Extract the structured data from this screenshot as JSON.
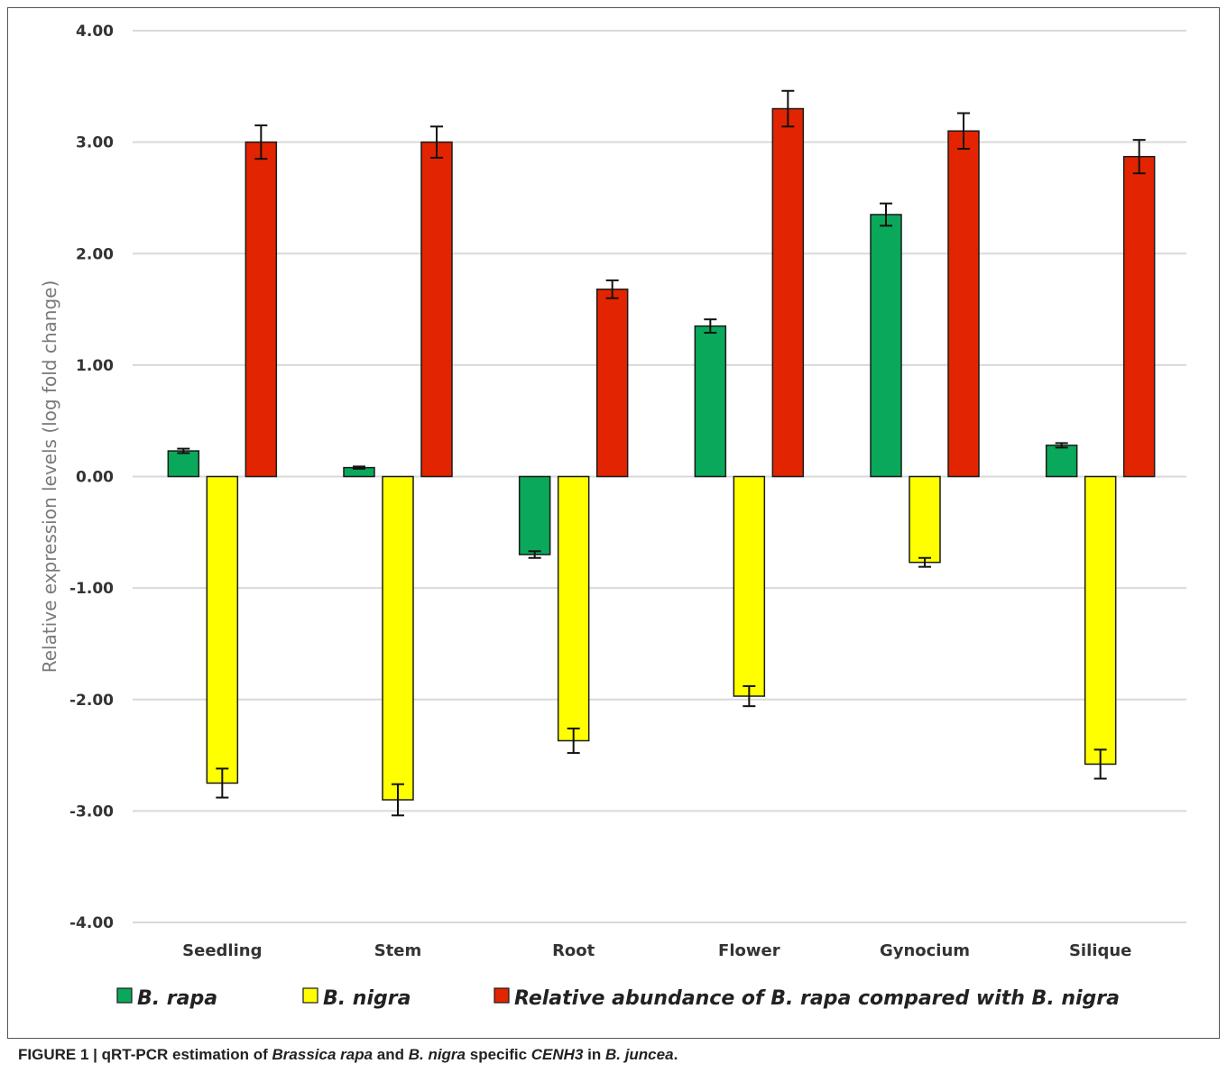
{
  "chart_data": {
    "type": "bar",
    "title": "",
    "xlabel": "",
    "ylabel": "Relative expression levels (log fold change)",
    "ylim": [
      -4,
      4
    ],
    "yticks": [
      "4.00",
      "3.00",
      "2.00",
      "1.00",
      "0.00",
      "-1.00",
      "-2.00",
      "-3.00",
      "-4.00"
    ],
    "ytick_values": [
      4,
      3,
      2,
      1,
      0,
      -1,
      -2,
      -3,
      -4
    ],
    "grid": true,
    "legend_position": "bottom",
    "categories": [
      "Seedling",
      "Stem",
      "Root",
      "Flower",
      "Gynocium",
      "Silique"
    ],
    "series": [
      {
        "name": "B. rapa",
        "color": "#0aa85a",
        "values": [
          0.23,
          0.08,
          -0.7,
          1.35,
          2.35,
          0.28
        ],
        "errors": [
          0.02,
          0.01,
          0.03,
          0.06,
          0.1,
          0.02
        ]
      },
      {
        "name": "B. nigra",
        "color": "#ffff00",
        "values": [
          -2.75,
          -2.9,
          -2.37,
          -1.97,
          -0.77,
          -2.58
        ],
        "errors": [
          0.13,
          0.14,
          0.11,
          0.09,
          0.04,
          0.13
        ]
      },
      {
        "name": "Relative abundance of B. rapa compared with B. nigra",
        "color": "#e32400",
        "values": [
          3.0,
          3.0,
          1.68,
          3.3,
          3.1,
          2.87
        ],
        "errors": [
          0.15,
          0.14,
          0.08,
          0.16,
          0.16,
          0.15
        ]
      }
    ]
  },
  "caption": {
    "label": "FIGURE 1 | ",
    "p1": "qRT-PCR estimation of ",
    "i1": "Brassica rapa",
    "p2": " and ",
    "i2": "B. nigra",
    "p3": " specific ",
    "i3": "CENH3",
    "p4": " in ",
    "i4": "B. juncea",
    "p5": "."
  }
}
